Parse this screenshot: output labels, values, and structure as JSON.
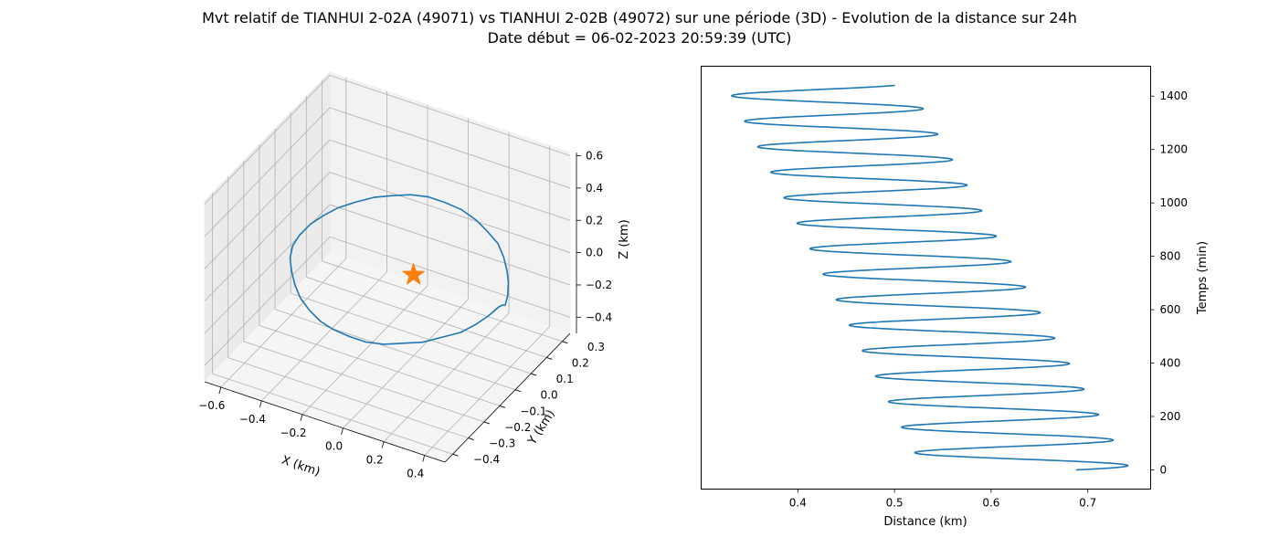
{
  "figure": {
    "title_line1": "Mvt relatif de TIANHUI 2-02A (49071) vs TIANHUI 2-02B (49072) sur une période (3D) - Evolution de la distance sur 24h",
    "title_line2": "Date début = 06-02-2023 20:59:39 (UTC)"
  },
  "chart_data": [
    {
      "type": "line3d",
      "xlabel": "X (km)",
      "ylabel": "Y (km)",
      "zlabel": "Z (km)",
      "x_ticks": [
        "−0.6",
        "−0.4",
        "−0.2",
        "0.0",
        "0.2",
        "0.4"
      ],
      "y_ticks": [
        "−0.4",
        "−0.3",
        "−0.2",
        "−0.1",
        "0.0",
        "0.1",
        "0.2",
        "0.3"
      ],
      "z_ticks": [
        "−0.4",
        "−0.2",
        "0.0",
        "0.2",
        "0.4",
        "0.6"
      ],
      "xlim": [
        -0.68,
        0.5
      ],
      "ylim": [
        -0.45,
        0.35
      ],
      "zlim": [
        -0.5,
        0.62
      ],
      "grid": true,
      "series": [
        {
          "x": [
            0.45,
            0.44,
            0.42,
            0.39,
            0.35,
            0.3,
            0.23,
            0.16,
            0.08,
            0.0,
            -0.08,
            -0.16,
            -0.24,
            -0.31,
            -0.38,
            -0.44,
            -0.49,
            -0.53,
            -0.56,
            -0.57,
            -0.56,
            -0.53,
            -0.49,
            -0.44,
            -0.38,
            -0.31,
            -0.24,
            -0.16,
            -0.08,
            0.0,
            0.08,
            0.16,
            0.23,
            0.3,
            0.35,
            0.39,
            0.42,
            0.44,
            0.45
          ],
          "y": [
            0.0,
            0.03,
            0.06,
            0.09,
            0.12,
            0.15,
            0.17,
            0.19,
            0.2,
            0.2,
            0.2,
            0.19,
            0.17,
            0.15,
            0.12,
            0.09,
            0.06,
            0.03,
            0.0,
            -0.03,
            -0.06,
            -0.09,
            -0.12,
            -0.15,
            -0.17,
            -0.19,
            -0.2,
            -0.2,
            -0.2,
            -0.19,
            -0.17,
            -0.15,
            -0.12,
            -0.09,
            -0.06,
            -0.03,
            0.0,
            0.0,
            0.0
          ],
          "z": [
            0.0,
            0.03,
            0.07,
            0.1,
            0.14,
            0.17,
            0.2,
            0.22,
            0.24,
            0.25,
            0.25,
            0.24,
            0.22,
            0.2,
            0.17,
            0.14,
            0.1,
            0.06,
            0.01,
            -0.03,
            -0.07,
            -0.11,
            -0.15,
            -0.18,
            -0.21,
            -0.23,
            -0.24,
            -0.25,
            -0.25,
            -0.24,
            -0.22,
            -0.2,
            -0.17,
            -0.14,
            -0.1,
            -0.06,
            -0.02,
            0.0,
            0.0
          ],
          "color": "#1f77b4"
        },
        {
          "type": "marker",
          "marker": "star",
          "x": [
            0.0
          ],
          "y": [
            0.0
          ],
          "z": [
            0.0
          ],
          "color": "#ff7f0e"
        }
      ]
    },
    {
      "type": "line",
      "xlabel": "Distance (km)",
      "ylabel": "Temps (min)",
      "xlim": [
        0.3,
        0.765
      ],
      "ylim": [
        -72,
        1512
      ],
      "x_ticks": [
        0.4,
        0.5,
        0.6,
        0.7
      ],
      "y_ticks": [
        0,
        200,
        400,
        600,
        800,
        1000,
        1200,
        1400
      ],
      "yaxis_position": "right",
      "grid": false,
      "series": [
        {
          "color": "#1f77b4",
          "start_distance": 0.688,
          "center_start": 0.637,
          "center_end": 0.421,
          "amplitude_start": 0.107,
          "amplitude_end": 0.095,
          "period_min": 95.5,
          "t_max": 1440
        }
      ]
    }
  ]
}
